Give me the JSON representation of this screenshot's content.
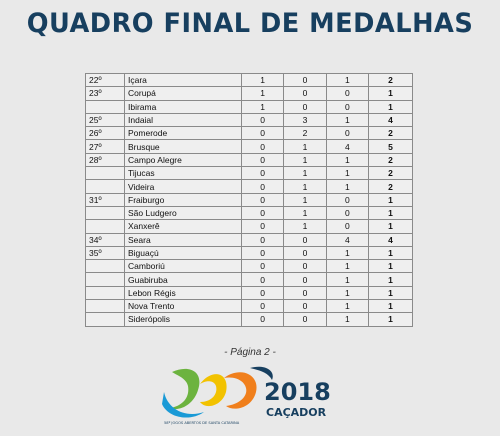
{
  "title": "QUADRO FINAL DE MEDALHAS",
  "table": {
    "rows": [
      {
        "rank": "22º",
        "city": "Içara",
        "gold": "1",
        "silver": "0",
        "bronze": "1",
        "total": "2"
      },
      {
        "rank": "23º",
        "city": "Corupá",
        "gold": "1",
        "silver": "0",
        "bronze": "0",
        "total": "1"
      },
      {
        "rank": "",
        "city": "Ibirama",
        "gold": "1",
        "silver": "0",
        "bronze": "0",
        "total": "1"
      },
      {
        "rank": "25º",
        "city": "Indaial",
        "gold": "0",
        "silver": "3",
        "bronze": "1",
        "total": "4"
      },
      {
        "rank": "26º",
        "city": "Pomerode",
        "gold": "0",
        "silver": "2",
        "bronze": "0",
        "total": "2"
      },
      {
        "rank": "27º",
        "city": "Brusque",
        "gold": "0",
        "silver": "1",
        "bronze": "4",
        "total": "5"
      },
      {
        "rank": "28º",
        "city": "Campo Alegre",
        "gold": "0",
        "silver": "1",
        "bronze": "1",
        "total": "2"
      },
      {
        "rank": "",
        "city": "Tijucas",
        "gold": "0",
        "silver": "1",
        "bronze": "1",
        "total": "2"
      },
      {
        "rank": "",
        "city": "Videira",
        "gold": "0",
        "silver": "1",
        "bronze": "1",
        "total": "2"
      },
      {
        "rank": "31º",
        "city": "Fraiburgo",
        "gold": "0",
        "silver": "1",
        "bronze": "0",
        "total": "1"
      },
      {
        "rank": "",
        "city": "São Ludgero",
        "gold": "0",
        "silver": "1",
        "bronze": "0",
        "total": "1"
      },
      {
        "rank": "",
        "city": "Xanxerê",
        "gold": "0",
        "silver": "1",
        "bronze": "0",
        "total": "1"
      },
      {
        "rank": "34º",
        "city": "Seara",
        "gold": "0",
        "silver": "0",
        "bronze": "4",
        "total": "4"
      },
      {
        "rank": "35º",
        "city": "Biguaçú",
        "gold": "0",
        "silver": "0",
        "bronze": "1",
        "total": "1"
      },
      {
        "rank": "",
        "city": "Camboriú",
        "gold": "0",
        "silver": "0",
        "bronze": "1",
        "total": "1"
      },
      {
        "rank": "",
        "city": "Guabiruba",
        "gold": "0",
        "silver": "0",
        "bronze": "1",
        "total": "1"
      },
      {
        "rank": "",
        "city": "Lebon Régis",
        "gold": "0",
        "silver": "0",
        "bronze": "1",
        "total": "1"
      },
      {
        "rank": "",
        "city": "Nova Trento",
        "gold": "0",
        "silver": "0",
        "bronze": "1",
        "total": "1"
      },
      {
        "rank": "",
        "city": "Siderópolis",
        "gold": "0",
        "silver": "0",
        "bronze": "1",
        "total": "1"
      }
    ]
  },
  "page_label": "- Página 2 -",
  "logo": {
    "year": "2018",
    "city": "CAÇADOR",
    "subtitle": "58º JOGOS ABERTOS DE SANTA CATARINA",
    "colors": {
      "navy": "#173f5f",
      "green": "#6cb33f",
      "yellow": "#f2c200",
      "orange": "#f07f1c",
      "blue": "#1a9ad6"
    }
  }
}
